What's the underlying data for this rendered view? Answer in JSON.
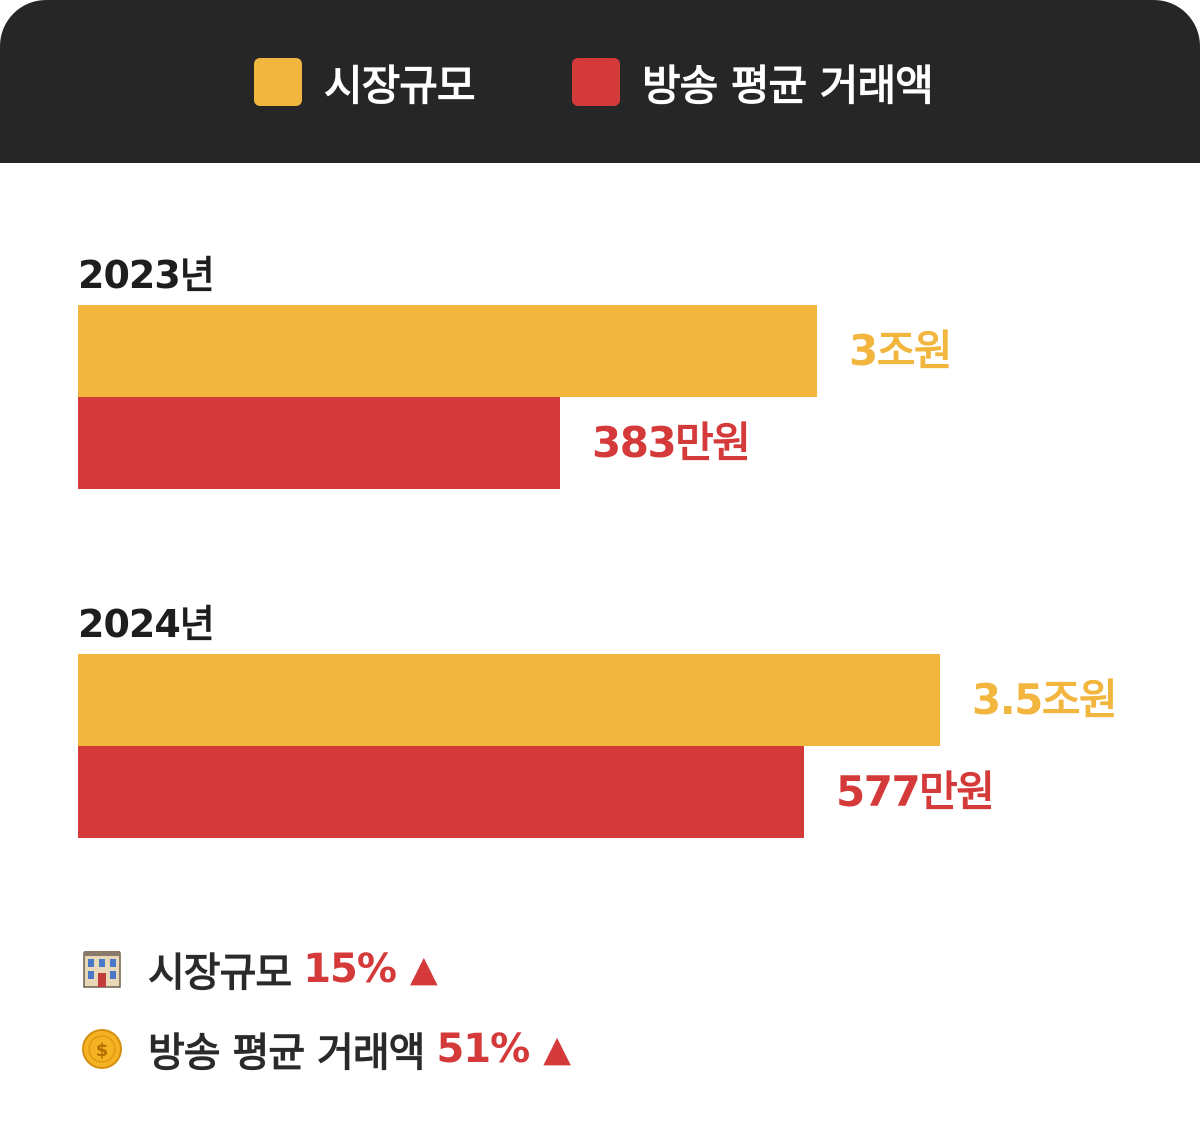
{
  "colors": {
    "market": "#f2b53d",
    "broadcast": "#d43a3a",
    "header_bg": "#262626"
  },
  "legend": [
    {
      "label": "시장규모",
      "color": "#f2b53d"
    },
    {
      "label": "방송 평균 거래액",
      "color": "#d43a3a"
    }
  ],
  "chart_data": {
    "type": "bar",
    "orientation": "horizontal",
    "categories": [
      "2023년",
      "2024년"
    ],
    "series": [
      {
        "name": "시장규모",
        "values": [
          3,
          3.5
        ],
        "value_labels": [
          "3조원",
          "3.5조원"
        ],
        "color": "#f2b53d"
      },
      {
        "name": "방송 평균 거래액",
        "values": [
          383,
          577
        ],
        "value_labels": [
          "383만원",
          "577만원"
        ],
        "color": "#d43a3a"
      }
    ],
    "grid": false,
    "legend_position": "top"
  },
  "summary": [
    {
      "icon": "building-icon",
      "label": "시장규모",
      "percent": "15%",
      "arrow": "▲"
    },
    {
      "icon": "coin-icon",
      "label": "방송 평균 거래액",
      "percent": "51%",
      "arrow": "▲"
    }
  ]
}
